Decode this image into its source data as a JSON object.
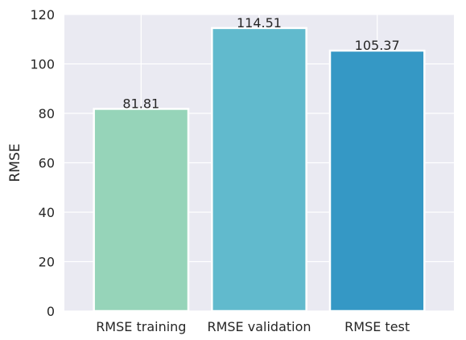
{
  "chart_data": {
    "type": "bar",
    "title": "",
    "xlabel": "",
    "ylabel": "RMSE",
    "categories": [
      "RMSE training",
      "RMSE validation",
      "RMSE test"
    ],
    "values": [
      81.81,
      114.51,
      105.37
    ],
    "value_labels": [
      "81.81",
      "114.51",
      "105.37"
    ],
    "colors": [
      "#96d4b9",
      "#61bacd",
      "#3598c5"
    ],
    "ylim": [
      0,
      120
    ],
    "yticks": [
      0,
      20,
      40,
      60,
      80,
      100,
      120
    ],
    "grid": true,
    "background": "#eaeaf2",
    "legend": "none"
  }
}
